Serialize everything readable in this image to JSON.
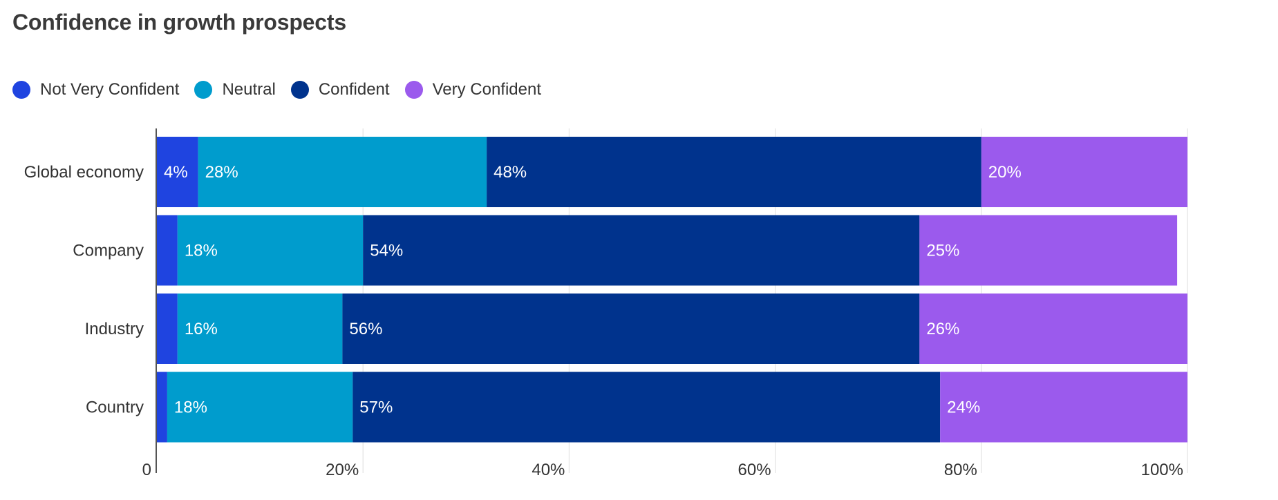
{
  "chart_data": {
    "type": "bar",
    "orientation": "horizontal",
    "stacked": true,
    "title": "Confidence in growth prospects",
    "categories": [
      "Global economy",
      "Company",
      "Industry",
      "Country"
    ],
    "series": [
      {
        "name": "Not Very Confident",
        "color": "#1f44e0",
        "values": [
          4,
          2,
          2,
          1
        ],
        "labels": [
          "4%",
          "",
          "",
          ""
        ]
      },
      {
        "name": "Neutral",
        "color": "#009ccd",
        "values": [
          28,
          18,
          16,
          18
        ],
        "labels": [
          "28%",
          "18%",
          "16%",
          "18%"
        ]
      },
      {
        "name": "Confident",
        "color": "#00338d",
        "values": [
          48,
          54,
          56,
          57
        ],
        "labels": [
          "48%",
          "54%",
          "56%",
          "57%"
        ]
      },
      {
        "name": "Very Confident",
        "color": "#9b5aed",
        "values": [
          20,
          25,
          26,
          24
        ],
        "labels": [
          "20%",
          "25%",
          "26%",
          "24%"
        ]
      }
    ],
    "xlim": [
      0,
      100
    ],
    "xticks": [
      0,
      20,
      40,
      60,
      80,
      100
    ],
    "xtick_labels": [
      "0",
      "20%",
      "40%",
      "60%",
      "80%",
      "100%"
    ],
    "grid": true,
    "legend_position": "top-left",
    "xlabel": "",
    "ylabel": ""
  }
}
